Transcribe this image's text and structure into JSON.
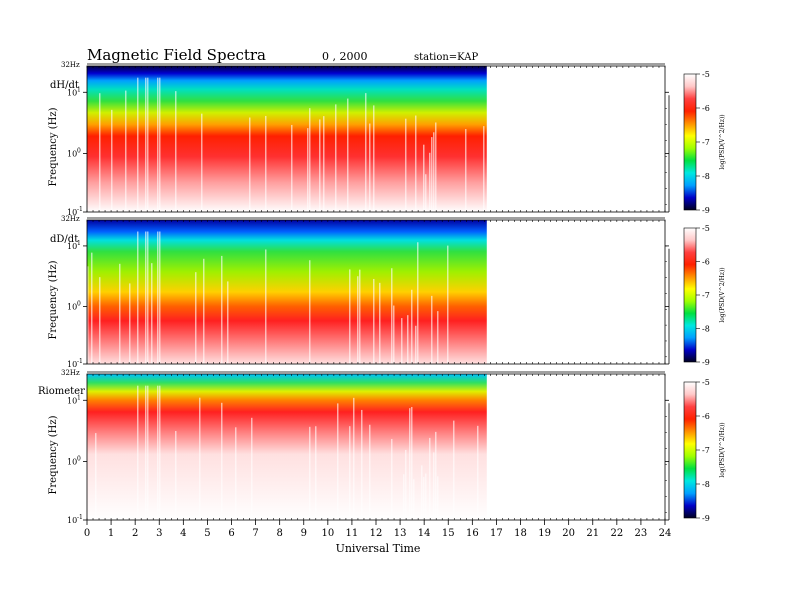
{
  "header": {
    "title": "Magnetic  Field  Spectra",
    "date": "0  , 2000",
    "station": "station=KAP"
  },
  "colorbar": {
    "label": "log(PSD(V^2/Hz))",
    "ticks": [
      "-5",
      "-6",
      "-7",
      "-8",
      "-9"
    ],
    "stops": [
      "#000020",
      "#0000c8",
      "#00a0ff",
      "#00e8e0",
      "#00e040",
      "#a0ff00",
      "#ffff00",
      "#ff9000",
      "#ff2000",
      "#ff4040",
      "#ffc8c8",
      "#ffffff"
    ]
  },
  "chart_data": [
    {
      "type": "heatmap",
      "panel_label": "dH/dt",
      "ylabel": "Frequency  (Hz)",
      "top_label": "32Hz",
      "y_ticks": [
        "10",
        "10",
        "10"
      ],
      "y_exponents": [
        "1",
        "0",
        "-1"
      ],
      "data_end_hour": 16.6,
      "xlim": [
        0,
        24
      ]
    },
    {
      "type": "heatmap",
      "panel_label": "dD/dt",
      "ylabel": "Frequency  (Hz)",
      "top_label": "32Hz",
      "y_ticks": [
        "10",
        "10",
        "10"
      ],
      "y_exponents": [
        "1",
        "0",
        "-1"
      ],
      "data_end_hour": 16.6,
      "xlim": [
        0,
        24
      ]
    },
    {
      "type": "heatmap",
      "panel_label": "Riometer",
      "ylabel": "Frequency  (Hz)",
      "top_label": "32Hz",
      "y_ticks": [
        "10",
        "10",
        "10"
      ],
      "y_exponents": [
        "1",
        "0",
        "-1"
      ],
      "data_end_hour": 16.6,
      "xlim": [
        0,
        24
      ]
    }
  ],
  "x_axis": {
    "label": "Universal Time",
    "ticks": [
      "0",
      "1",
      "2",
      "3",
      "4",
      "5",
      "6",
      "7",
      "8",
      "9",
      "10",
      "11",
      "12",
      "13",
      "14",
      "15",
      "16",
      "17",
      "18",
      "19",
      "20",
      "21",
      "22",
      "23",
      "24"
    ]
  }
}
